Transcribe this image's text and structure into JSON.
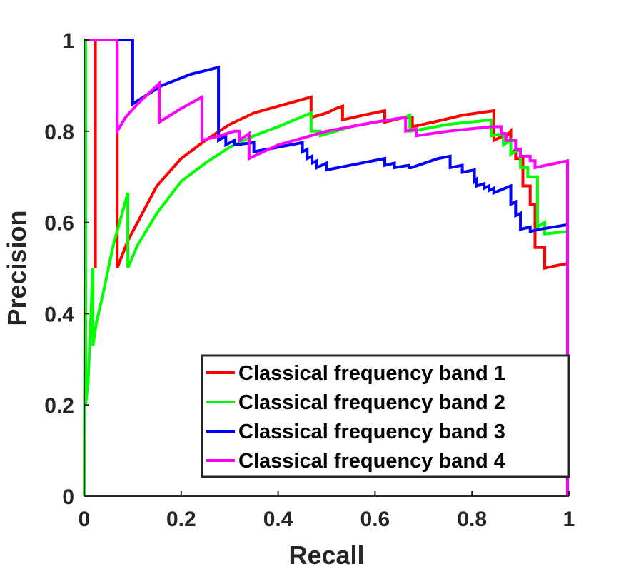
{
  "chart_data": {
    "type": "line",
    "title": "",
    "xlabel": "Recall",
    "ylabel": "Precision",
    "xlim": [
      0,
      1
    ],
    "ylim": [
      0,
      1
    ],
    "xticks": [
      0,
      0.2,
      0.4,
      0.6,
      0.8,
      1
    ],
    "yticks": [
      0,
      0.2,
      0.4,
      0.6,
      0.8,
      1
    ],
    "xtick_labels": [
      "0",
      "0.2",
      "0.4",
      "0.6",
      "0.8",
      "1"
    ],
    "ytick_labels": [
      "0",
      "0.2",
      "0.4",
      "0.6",
      "0.8",
      "1"
    ],
    "grid": false,
    "legend_position": "bottom-right",
    "series": [
      {
        "name": "Classical frequency band 1",
        "color": "#ff0000",
        "points": [
          [
            0,
            1
          ],
          [
            0.023,
            1
          ],
          [
            0.023,
            0.5
          ],
          [
            0.023,
            1
          ],
          [
            0.068,
            1
          ],
          [
            0.068,
            0.5
          ],
          [
            0.09,
            0.56
          ],
          [
            0.12,
            0.62
          ],
          [
            0.15,
            0.68
          ],
          [
            0.2,
            0.74
          ],
          [
            0.25,
            0.78
          ],
          [
            0.3,
            0.815
          ],
          [
            0.35,
            0.84
          ],
          [
            0.4,
            0.855
          ],
          [
            0.468,
            0.875
          ],
          [
            0.468,
            0.83
          ],
          [
            0.5,
            0.84
          ],
          [
            0.52,
            0.85
          ],
          [
            0.533,
            0.855
          ],
          [
            0.533,
            0.825
          ],
          [
            0.575,
            0.835
          ],
          [
            0.62,
            0.845
          ],
          [
            0.62,
            0.82
          ],
          [
            0.66,
            0.83
          ],
          [
            0.677,
            0.83
          ],
          [
            0.677,
            0.81
          ],
          [
            0.72,
            0.82
          ],
          [
            0.78,
            0.835
          ],
          [
            0.845,
            0.845
          ],
          [
            0.845,
            0.78
          ],
          [
            0.865,
            0.79
          ],
          [
            0.865,
            0.78
          ],
          [
            0.88,
            0.8
          ],
          [
            0.88,
            0.75
          ],
          [
            0.89,
            0.76
          ],
          [
            0.89,
            0.74
          ],
          [
            0.905,
            0.74
          ],
          [
            0.905,
            0.68
          ],
          [
            0.92,
            0.68
          ],
          [
            0.92,
            0.64
          ],
          [
            0.93,
            0.64
          ],
          [
            0.93,
            0.545
          ],
          [
            0.95,
            0.545
          ],
          [
            0.95,
            0.5
          ],
          [
            0.997,
            0.51
          ],
          [
            0.997,
            0
          ]
        ]
      },
      {
        "name": "Classical frequency band 2",
        "color": "#00ff00",
        "points": [
          [
            0,
            0
          ],
          [
            0.003,
            1
          ],
          [
            0.003,
            0.2
          ],
          [
            0.008,
            0.25
          ],
          [
            0.012,
            0.35
          ],
          [
            0.018,
            0.5
          ],
          [
            0.018,
            0.33
          ],
          [
            0.025,
            0.38
          ],
          [
            0.04,
            0.45
          ],
          [
            0.06,
            0.55
          ],
          [
            0.09,
            0.665
          ],
          [
            0.09,
            0.5
          ],
          [
            0.11,
            0.55
          ],
          [
            0.15,
            0.62
          ],
          [
            0.2,
            0.69
          ],
          [
            0.25,
            0.73
          ],
          [
            0.3,
            0.765
          ],
          [
            0.35,
            0.79
          ],
          [
            0.4,
            0.81
          ],
          [
            0.468,
            0.84
          ],
          [
            0.468,
            0.8
          ],
          [
            0.487,
            0.8
          ],
          [
            0.487,
            0.79
          ],
          [
            0.55,
            0.81
          ],
          [
            0.6,
            0.82
          ],
          [
            0.66,
            0.83
          ],
          [
            0.672,
            0.835
          ],
          [
            0.672,
            0.8
          ],
          [
            0.7,
            0.805
          ],
          [
            0.75,
            0.815
          ],
          [
            0.84,
            0.825
          ],
          [
            0.84,
            0.79
          ],
          [
            0.865,
            0.795
          ],
          [
            0.865,
            0.77
          ],
          [
            0.88,
            0.78
          ],
          [
            0.88,
            0.75
          ],
          [
            0.9,
            0.76
          ],
          [
            0.9,
            0.72
          ],
          [
            0.915,
            0.72
          ],
          [
            0.915,
            0.7
          ],
          [
            0.935,
            0.7
          ],
          [
            0.935,
            0.59
          ],
          [
            0.95,
            0.6
          ],
          [
            0.95,
            0.575
          ],
          [
            0.997,
            0.58
          ],
          [
            0.997,
            0
          ]
        ]
      },
      {
        "name": "Classical frequency band 3",
        "color": "#0000ff",
        "points": [
          [
            0,
            1
          ],
          [
            0.1,
            1
          ],
          [
            0.1,
            0.86
          ],
          [
            0.1,
            0.86
          ],
          [
            0.16,
            0.9
          ],
          [
            0.22,
            0.925
          ],
          [
            0.277,
            0.94
          ],
          [
            0.277,
            0.78
          ],
          [
            0.292,
            0.79
          ],
          [
            0.292,
            0.77
          ],
          [
            0.31,
            0.78
          ],
          [
            0.31,
            0.77
          ],
          [
            0.35,
            0.775
          ],
          [
            0.35,
            0.755
          ],
          [
            0.45,
            0.775
          ],
          [
            0.45,
            0.755
          ],
          [
            0.46,
            0.76
          ],
          [
            0.46,
            0.74
          ],
          [
            0.47,
            0.745
          ],
          [
            0.47,
            0.73
          ],
          [
            0.48,
            0.735
          ],
          [
            0.48,
            0.72
          ],
          [
            0.5,
            0.73
          ],
          [
            0.5,
            0.715
          ],
          [
            0.62,
            0.74
          ],
          [
            0.62,
            0.725
          ],
          [
            0.64,
            0.73
          ],
          [
            0.64,
            0.72
          ],
          [
            0.67,
            0.725
          ],
          [
            0.67,
            0.72
          ],
          [
            0.675,
            0.72
          ],
          [
            0.675,
            0.72
          ],
          [
            0.73,
            0.74
          ],
          [
            0.755,
            0.745
          ],
          [
            0.755,
            0.72
          ],
          [
            0.78,
            0.725
          ],
          [
            0.78,
            0.71
          ],
          [
            0.805,
            0.715
          ],
          [
            0.805,
            0.69
          ],
          [
            0.81,
            0.695
          ],
          [
            0.81,
            0.68
          ],
          [
            0.825,
            0.685
          ],
          [
            0.825,
            0.675
          ],
          [
            0.835,
            0.68
          ],
          [
            0.835,
            0.67
          ],
          [
            0.845,
            0.675
          ],
          [
            0.845,
            0.665
          ],
          [
            0.88,
            0.68
          ],
          [
            0.88,
            0.64
          ],
          [
            0.89,
            0.645
          ],
          [
            0.89,
            0.615
          ],
          [
            0.9,
            0.62
          ],
          [
            0.9,
            0.585
          ],
          [
            0.92,
            0.59
          ],
          [
            0.92,
            0.58
          ],
          [
            0.94,
            0.585
          ],
          [
            0.997,
            0.595
          ],
          [
            0.997,
            0
          ]
        ]
      },
      {
        "name": "Classical frequency band 4",
        "color": "#ff00ff",
        "points": [
          [
            0,
            1
          ],
          [
            0.068,
            1
          ],
          [
            0.068,
            0.8
          ],
          [
            0.085,
            0.83
          ],
          [
            0.11,
            0.86
          ],
          [
            0.155,
            0.905
          ],
          [
            0.155,
            0.82
          ],
          [
            0.2,
            0.85
          ],
          [
            0.243,
            0.875
          ],
          [
            0.243,
            0.78
          ],
          [
            0.28,
            0.79
          ],
          [
            0.31,
            0.8
          ],
          [
            0.32,
            0.8
          ],
          [
            0.32,
            0.78
          ],
          [
            0.34,
            0.795
          ],
          [
            0.34,
            0.74
          ],
          [
            0.4,
            0.77
          ],
          [
            0.45,
            0.785
          ],
          [
            0.5,
            0.8
          ],
          [
            0.55,
            0.81
          ],
          [
            0.6,
            0.82
          ],
          [
            0.66,
            0.83
          ],
          [
            0.663,
            0.83
          ],
          [
            0.663,
            0.8
          ],
          [
            0.685,
            0.805
          ],
          [
            0.685,
            0.79
          ],
          [
            0.75,
            0.8
          ],
          [
            0.84,
            0.81
          ],
          [
            0.86,
            0.81
          ],
          [
            0.86,
            0.795
          ],
          [
            0.87,
            0.795
          ],
          [
            0.87,
            0.78
          ],
          [
            0.89,
            0.78
          ],
          [
            0.89,
            0.76
          ],
          [
            0.9,
            0.76
          ],
          [
            0.9,
            0.745
          ],
          [
            0.92,
            0.745
          ],
          [
            0.92,
            0.735
          ],
          [
            0.93,
            0.735
          ],
          [
            0.93,
            0.72
          ],
          [
            0.997,
            0.735
          ],
          [
            0.997,
            0
          ]
        ]
      }
    ]
  }
}
